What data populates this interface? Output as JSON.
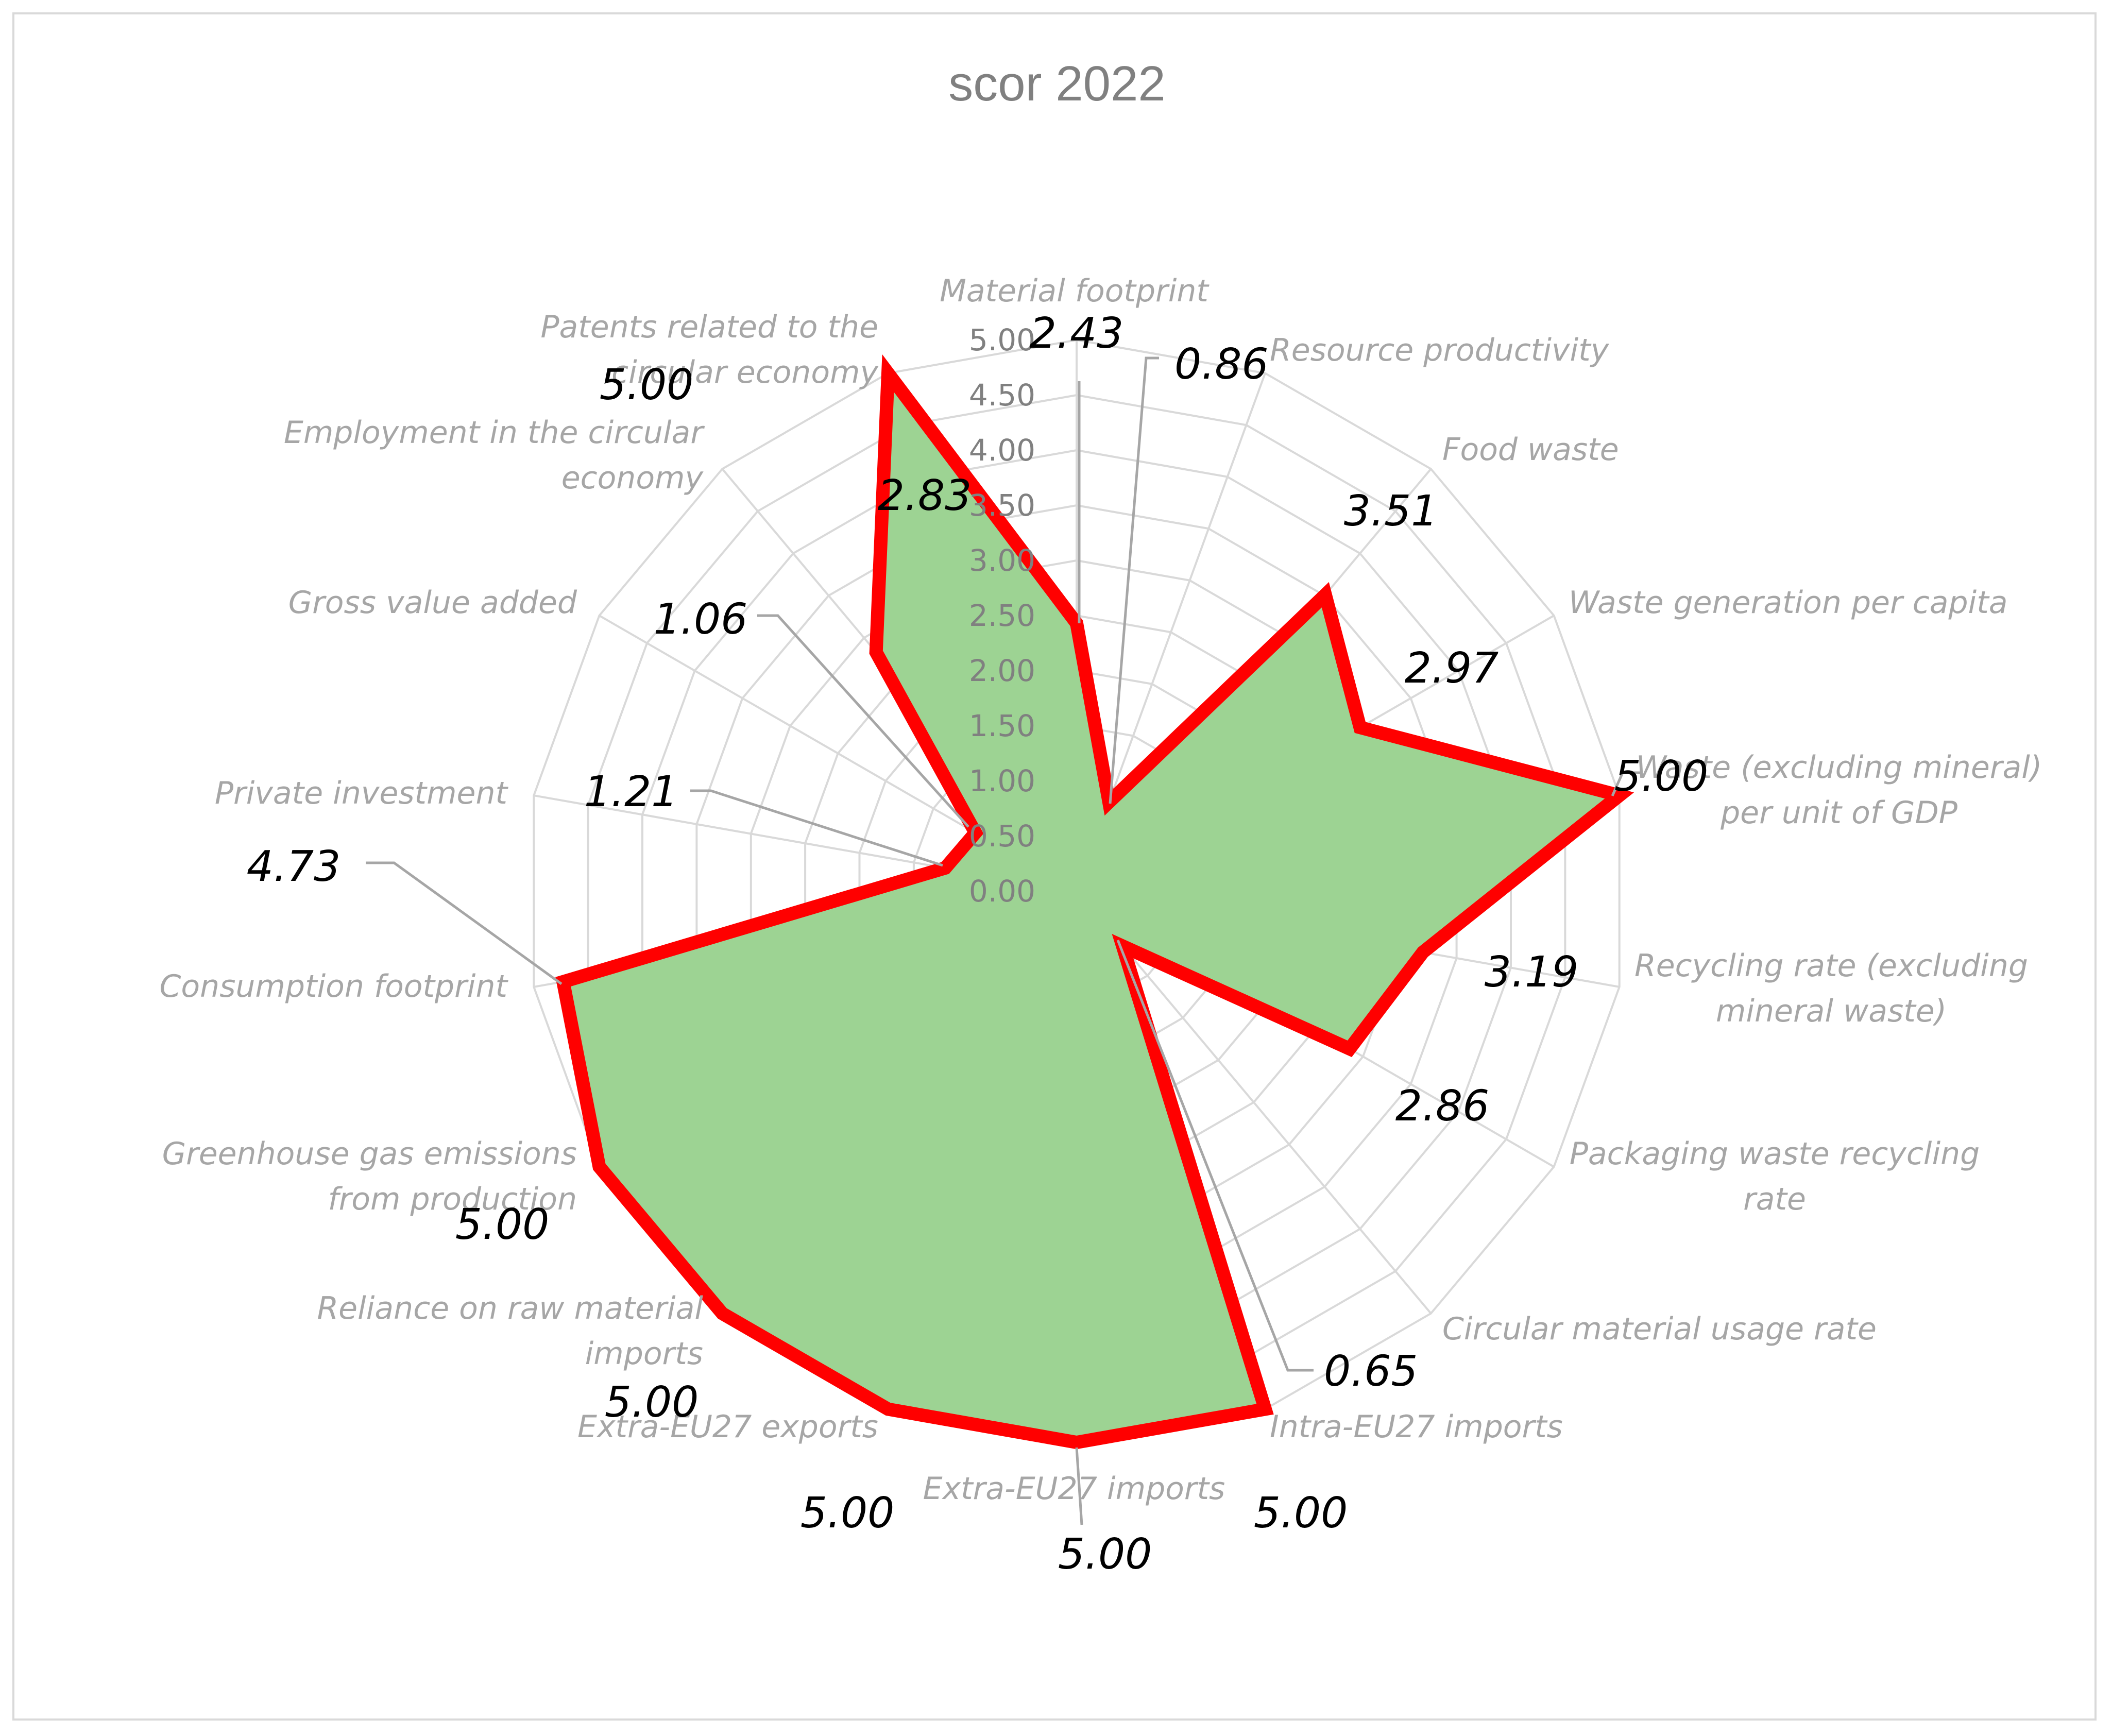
{
  "chart_data": {
    "type": "radar",
    "title": "scor 2022",
    "categories": [
      "Material footprint",
      "Resource productivity",
      "Food waste",
      "Waste generation per capita",
      "Waste (excluding mineral) per unit of GDP",
      "Recycling rate (excluding mineral waste)",
      "Packaging waste recycling rate",
      "Circular material usage rate",
      "Intra-EU27 imports",
      "Extra-EU27 imports",
      "Extra-EU27 exports",
      "Reliance on raw material imports",
      "Greenhouse gas emissions from production",
      "Consumption footprint",
      "Private investment",
      "Gross value added",
      "Employment in the circular economy",
      "Patents related to the circular economy"
    ],
    "values": [
      2.43,
      0.86,
      3.51,
      2.97,
      5.0,
      3.19,
      2.86,
      0.65,
      5.0,
      5.0,
      5.0,
      5.0,
      5.0,
      4.73,
      1.21,
      1.06,
      2.83,
      5.0
    ],
    "value_labels": [
      "2.43",
      "0.86",
      "3.51",
      "2.97",
      "5.00",
      "3.19",
      "2.86",
      "0.65",
      "5.00",
      "5.00",
      "5.00",
      "5.00",
      "5.00",
      "4.73",
      "1.21",
      "1.06",
      "2.83",
      "5.00"
    ],
    "ticks": [
      "0.00",
      "0.50",
      "1.00",
      "1.50",
      "2.00",
      "2.50",
      "3.00",
      "3.50",
      "4.00",
      "4.50",
      "5.00"
    ],
    "rlim": [
      0,
      5
    ],
    "grid": true,
    "legend": false,
    "colors": {
      "fill": "#9dd393",
      "line": "#ff0000",
      "grid": "#d9d9d9",
      "leader": "#a6a6a6"
    }
  }
}
